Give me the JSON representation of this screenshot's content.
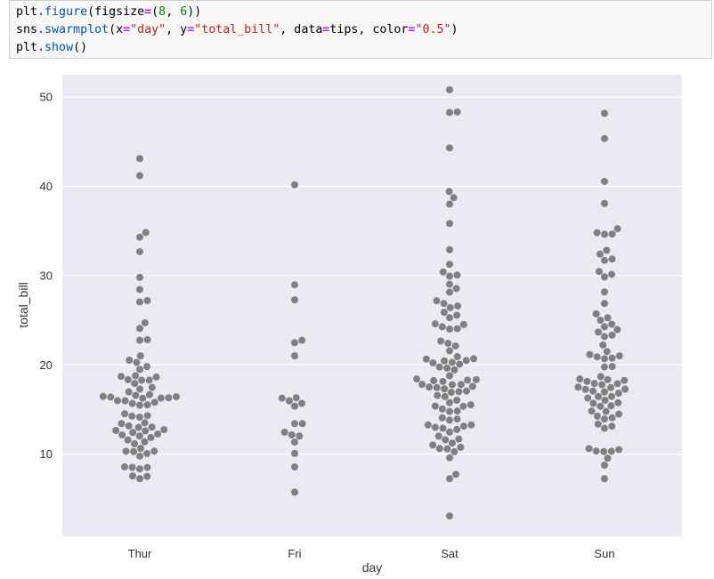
{
  "code": {
    "lines": [
      [
        {
          "t": "plt",
          "c": "plain"
        },
        {
          "t": ".",
          "c": "op"
        },
        {
          "t": "figure",
          "c": "fn"
        },
        {
          "t": "(figsize",
          "c": "plain"
        },
        {
          "t": "=",
          "c": "op"
        },
        {
          "t": "(",
          "c": "plain"
        },
        {
          "t": "8",
          "c": "num"
        },
        {
          "t": ", ",
          "c": "plain"
        },
        {
          "t": "6",
          "c": "num"
        },
        {
          "t": "))",
          "c": "plain"
        }
      ],
      [
        {
          "t": "sns",
          "c": "plain"
        },
        {
          "t": ".",
          "c": "op"
        },
        {
          "t": "swarmplot",
          "c": "fn"
        },
        {
          "t": "(x",
          "c": "plain"
        },
        {
          "t": "=",
          "c": "op"
        },
        {
          "t": "\"day\"",
          "c": "str"
        },
        {
          "t": ", y",
          "c": "plain"
        },
        {
          "t": "=",
          "c": "op"
        },
        {
          "t": "\"total_bill\"",
          "c": "str"
        },
        {
          "t": ", data",
          "c": "plain"
        },
        {
          "t": "=",
          "c": "op"
        },
        {
          "t": "tips, color",
          "c": "plain"
        },
        {
          "t": "=",
          "c": "op"
        },
        {
          "t": "\"0.5\"",
          "c": "str"
        },
        {
          "t": ")",
          "c": "plain"
        }
      ],
      [
        {
          "t": "plt",
          "c": "plain"
        },
        {
          "t": ".",
          "c": "op"
        },
        {
          "t": "show",
          "c": "fn"
        },
        {
          "t": "()",
          "c": "plain"
        }
      ]
    ]
  },
  "chart_data": {
    "type": "scatter",
    "style": "swarm",
    "xlabel": "day",
    "ylabel": "total_bill",
    "categories": [
      "Thur",
      "Fri",
      "Sat",
      "Sun"
    ],
    "ylim": [
      0.8,
      52.5
    ],
    "yticks": [
      10,
      20,
      30,
      40,
      50
    ],
    "grid": true,
    "background_color": "#eaeaf2",
    "point_color": "#808080",
    "values": {
      "Thur": [
        43.11,
        41.19,
        34.83,
        34.3,
        32.68,
        29.8,
        28.44,
        27.2,
        27.05,
        24.71,
        24.08,
        22.82,
        22.76,
        21.01,
        20.53,
        20.27,
        19.81,
        19.49,
        18.78,
        18.71,
        18.64,
        18.35,
        18.29,
        18.28,
        17.92,
        17.47,
        17.29,
        16.97,
        16.66,
        16.58,
        16.47,
        16.43,
        16.4,
        16.32,
        16.29,
        16.27,
        16.0,
        15.98,
        15.81,
        15.69,
        15.53,
        15.48,
        14.52,
        14.31,
        14.26,
        14.15,
        13.51,
        13.42,
        13.16,
        13.03,
        13.0,
        12.74,
        12.66,
        12.6,
        12.43,
        12.26,
        12.16,
        12.03,
        11.87,
        11.59,
        11.38,
        11.17,
        10.65,
        10.34,
        10.33,
        10.29,
        10.07,
        9.78,
        8.58,
        8.52,
        8.51,
        8.35,
        7.56,
        7.51,
        7.25
      ],
      "Fri": [
        40.17,
        28.97,
        27.28,
        22.75,
        22.49,
        21.01,
        16.32,
        16.27,
        15.98,
        15.69,
        15.38,
        13.42,
        13.42,
        12.46,
        12.16,
        12.03,
        11.35,
        10.09,
        8.58,
        5.75
      ],
      "Sat": [
        50.81,
        48.33,
        48.27,
        44.3,
        39.42,
        38.73,
        38.01,
        35.83,
        32.9,
        31.27,
        30.4,
        30.06,
        29.93,
        29.03,
        28.55,
        28.15,
        27.18,
        26.88,
        26.59,
        26.41,
        25.89,
        25.56,
        25.29,
        24.59,
        24.52,
        24.27,
        24.01,
        24.06,
        22.67,
        22.42,
        22.12,
        21.58,
        20.92,
        20.69,
        20.65,
        20.49,
        20.45,
        20.29,
        20.23,
        20.08,
        19.77,
        19.65,
        19.44,
        18.78,
        18.43,
        18.35,
        18.29,
        18.24,
        18.15,
        17.82,
        17.81,
        17.78,
        17.59,
        17.51,
        17.46,
        17.31,
        17.07,
        16.99,
        16.93,
        16.58,
        16.45,
        16.04,
        15.77,
        15.53,
        15.38,
        15.36,
        15.06,
        14.83,
        14.78,
        14.07,
        13.94,
        13.81,
        13.28,
        13.27,
        13.13,
        13.0,
        12.9,
        12.76,
        12.48,
        12.02,
        11.69,
        11.61,
        11.24,
        11.02,
        10.77,
        10.63,
        10.59,
        10.27,
        9.6,
        7.74,
        7.25,
        3.07
      ],
      "Sun": [
        48.17,
        45.35,
        40.55,
        38.07,
        35.26,
        34.81,
        34.65,
        34.63,
        32.83,
        32.4,
        31.85,
        31.71,
        30.46,
        30.14,
        29.85,
        28.17,
        26.88,
        25.71,
        25.28,
        25.0,
        24.55,
        24.27,
        23.95,
        23.68,
        23.33,
        23.17,
        22.23,
        21.5,
        21.16,
        21.01,
        20.9,
        20.76,
        20.69,
        19.82,
        19.77,
        18.69,
        18.43,
        18.35,
        18.26,
        18.15,
        17.92,
        17.89,
        17.78,
        17.51,
        17.46,
        17.29,
        17.26,
        17.07,
        16.97,
        16.82,
        16.47,
        16.45,
        16.29,
        16.04,
        15.76,
        15.69,
        15.42,
        15.36,
        14.83,
        14.78,
        14.48,
        14.26,
        14.07,
        13.94,
        13.37,
        13.13,
        12.9,
        10.63,
        10.51,
        10.34,
        10.33,
        10.29,
        9.55,
        8.77,
        7.25
      ]
    }
  }
}
